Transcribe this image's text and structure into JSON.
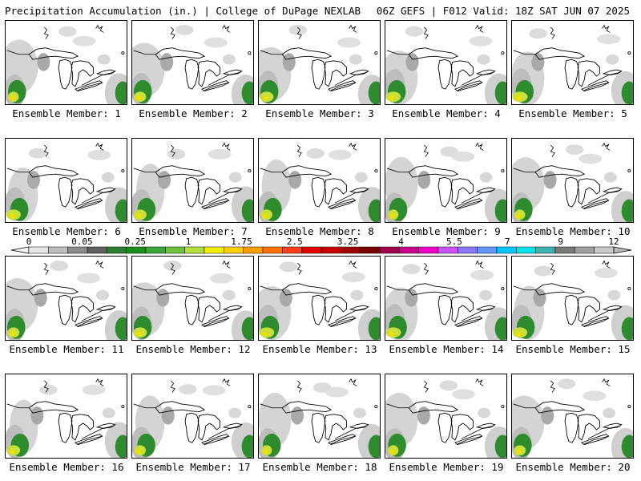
{
  "header": {
    "left": "Precipitation Accumulation (in.) | College of DuPage NEXLAB",
    "right": "06Z GEFS | F012 Valid: 18Z SAT JUN 07 2025"
  },
  "members": [
    {
      "label": "Ensemble Member: 1"
    },
    {
      "label": "Ensemble Member: 2"
    },
    {
      "label": "Ensemble Member: 3"
    },
    {
      "label": "Ensemble Member: 4"
    },
    {
      "label": "Ensemble Member: 5"
    },
    {
      "label": "Ensemble Member: 6"
    },
    {
      "label": "Ensemble Member: 7"
    },
    {
      "label": "Ensemble Member: 8"
    },
    {
      "label": "Ensemble Member: 9"
    },
    {
      "label": "Ensemble Member: 10"
    },
    {
      "label": "Ensemble Member: 11"
    },
    {
      "label": "Ensemble Member: 12"
    },
    {
      "label": "Ensemble Member: 13"
    },
    {
      "label": "Ensemble Member: 14"
    },
    {
      "label": "Ensemble Member: 15"
    },
    {
      "label": "Ensemble Member: 16"
    },
    {
      "label": "Ensemble Member: 17"
    },
    {
      "label": "Ensemble Member: 18"
    },
    {
      "label": "Ensemble Member: 19"
    },
    {
      "label": "Ensemble Member: 20"
    }
  ],
  "colorbar": {
    "tick_labels": [
      "0",
      "0.05",
      "0.25",
      "1",
      "1.75",
      "2.5",
      "3.25",
      "4",
      "5.5",
      "7",
      "9",
      "12"
    ],
    "colors": [
      "#e6e6e6",
      "#bebebe",
      "#8c8c8c",
      "#5f5f5f",
      "#2e7d32",
      "#1b8f1b",
      "#3aa83a",
      "#6cc23a",
      "#b4e03c",
      "#f0f000",
      "#ffd000",
      "#ffa000",
      "#ff7000",
      "#ff3c1e",
      "#e60000",
      "#c80000",
      "#a00000",
      "#780000",
      "#a0004a",
      "#c8008c",
      "#f000c8",
      "#c850ff",
      "#8c78ff",
      "#6496ff",
      "#00c8ff",
      "#00e6e6",
      "#40b0b0",
      "#7a7a7a",
      "#a0a0a0",
      "#c8c8c8"
    ]
  }
}
